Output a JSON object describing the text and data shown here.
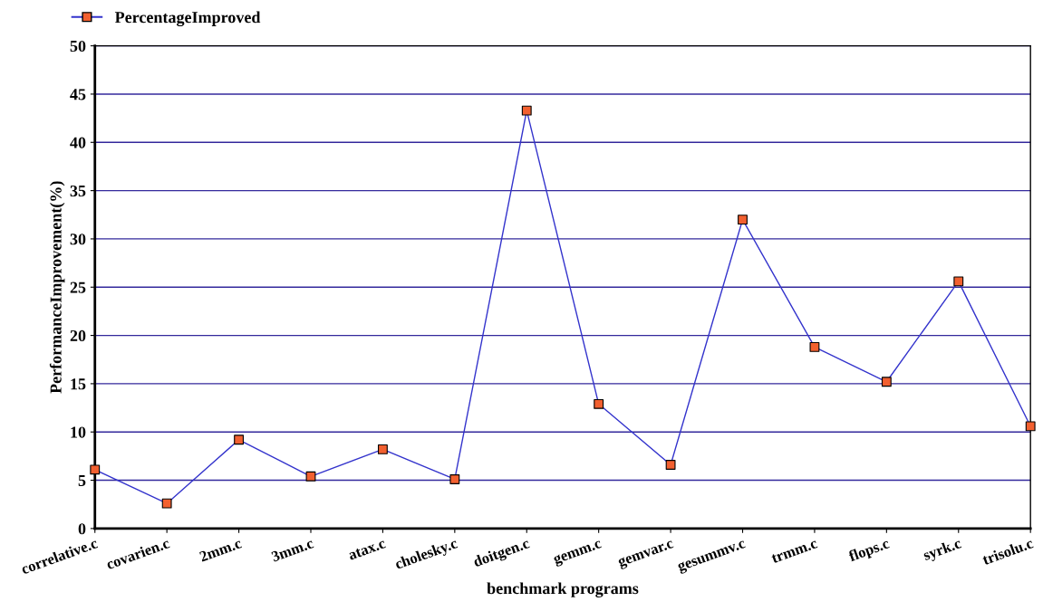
{
  "chart_data": {
    "type": "line",
    "xlabel": "benchmark programs",
    "ylabel": "PerformanceImprovement(%)",
    "categories": [
      "correlative.c",
      "covarien.c",
      "2mm.c",
      "3mm.c",
      "atax.c",
      "cholesky.c",
      "doitgen.c",
      "gemm.c",
      "gemvar.c",
      "gesummv.c",
      "trmm.c",
      "flops.c",
      "syrk.c",
      "trisolu.c"
    ],
    "series": [
      {
        "name": "PercentageImproved",
        "color": "#3333cc",
        "colors": [
          "#f26030",
          "#f26030",
          "#f26030",
          "#f26030",
          "#f26030",
          "#f26030",
          "#f26030",
          "#f26030",
          "#f26030",
          "#f26030",
          "#f26030",
          "#f26030",
          "#f26030",
          "#f26030"
        ],
        "values": [
          6.1,
          2.6,
          9.2,
          5.4,
          8.2,
          5.1,
          43.3,
          12.9,
          6.6,
          32.0,
          18.8,
          15.2,
          25.6,
          10.6
        ]
      }
    ],
    "ylim": [
      0,
      50
    ],
    "yticks": [
      0,
      5,
      10,
      15,
      20,
      25,
      30,
      35,
      40,
      45,
      50
    ],
    "grid": "y",
    "legend": "top left",
    "marker": "square",
    "line_style": "solid"
  }
}
